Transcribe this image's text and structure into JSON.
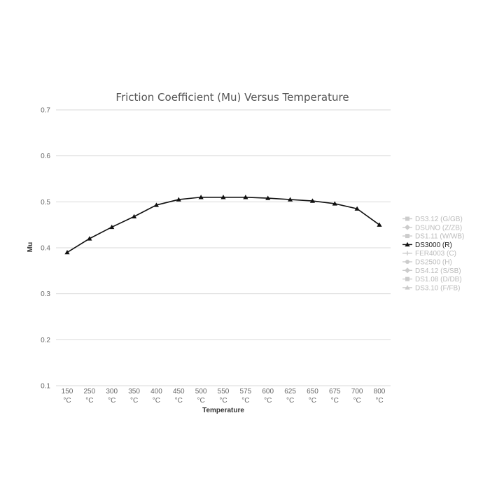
{
  "chart_data": {
    "type": "line",
    "title": "Friction Coefficient (Mu) Versus Temperature",
    "xlabel": "Temperature",
    "ylabel": "Mu",
    "ylim": [
      0.1,
      0.7
    ],
    "yticks": [
      "0.1",
      "0.2",
      "0.3",
      "0.4",
      "0.5",
      "0.6",
      "0.7"
    ],
    "categories": [
      "150",
      "250",
      "300",
      "350",
      "400",
      "450",
      "500",
      "550",
      "575",
      "600",
      "625",
      "650",
      "675",
      "700",
      "800"
    ],
    "category_unit": "°C",
    "grid": true,
    "legend_position": "right",
    "series": [
      {
        "name": "DS3000 (R)",
        "active": true,
        "color": "#111111",
        "marker": "triangle",
        "values": [
          0.39,
          0.42,
          0.445,
          0.468,
          0.493,
          0.505,
          0.51,
          0.51,
          0.51,
          0.508,
          0.505,
          0.502,
          0.496,
          0.485,
          0.45
        ]
      }
    ],
    "legend": [
      {
        "name": "DS3.12 (G/GB)",
        "active": false,
        "marker": "square"
      },
      {
        "name": "DSUNO (Z/ZB)",
        "active": false,
        "marker": "diamond"
      },
      {
        "name": "DS1.11 (W/WB)",
        "active": false,
        "marker": "square"
      },
      {
        "name": "DS3000 (R)",
        "active": true,
        "marker": "triangle"
      },
      {
        "name": "FER4003 (C)",
        "active": false,
        "marker": "cross"
      },
      {
        "name": "DS2500 (H)",
        "active": false,
        "marker": "circle"
      },
      {
        "name": "DS4.12 (S/SB)",
        "active": false,
        "marker": "diamond"
      },
      {
        "name": "DS1.08 (D/DB)",
        "active": false,
        "marker": "square"
      },
      {
        "name": "DS3.10 (F/FB)",
        "active": false,
        "marker": "triangle"
      }
    ],
    "colors": {
      "active": "#111111",
      "inactive": "#cccccc",
      "grid": "#d9d9d9"
    }
  }
}
